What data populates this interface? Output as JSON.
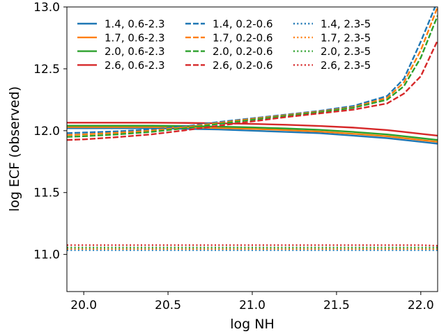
{
  "chart_data": {
    "type": "line",
    "xlabel": "log NH",
    "ylabel": "log ECF (observed)",
    "xlim": [
      19.9,
      22.1
    ],
    "ylim": [
      10.7,
      13.0
    ],
    "xticks": [
      20.0,
      20.5,
      21.0,
      21.5,
      22.0
    ],
    "yticks": [
      11.0,
      11.5,
      12.0,
      12.5,
      13.0
    ],
    "x": [
      19.9,
      20.0,
      20.2,
      20.4,
      20.6,
      20.8,
      21.0,
      21.2,
      21.4,
      21.6,
      21.8,
      21.9,
      22.0,
      22.1
    ],
    "legend_position": "top-left",
    "legend_columns": 3,
    "colors": {
      "1.4": "#1f77b4",
      "1.7": "#ff7f0e",
      "2.0": "#2ca02c",
      "2.6": "#d62728"
    },
    "series": [
      {
        "name": "1.4, 0.6-2.3",
        "color": "#1f77b4",
        "style": "solid",
        "values": [
          12.02,
          12.02,
          12.02,
          12.02,
          12.015,
          12.01,
          12.0,
          11.99,
          11.98,
          11.96,
          11.94,
          11.925,
          11.91,
          11.895
        ]
      },
      {
        "name": "1.7, 0.6-2.3",
        "color": "#ff7f0e",
        "style": "solid",
        "values": [
          12.03,
          12.03,
          12.03,
          12.03,
          12.028,
          12.022,
          12.015,
          12.005,
          11.993,
          11.975,
          11.955,
          11.94,
          11.925,
          11.91
        ]
      },
      {
        "name": "2.0, 0.6-2.3",
        "color": "#2ca02c",
        "style": "solid",
        "values": [
          12.04,
          12.04,
          12.04,
          12.04,
          12.038,
          12.033,
          12.027,
          12.018,
          12.007,
          11.99,
          11.97,
          11.955,
          11.94,
          11.925
        ]
      },
      {
        "name": "2.6, 0.6-2.3",
        "color": "#d62728",
        "style": "solid",
        "values": [
          12.065,
          12.065,
          12.065,
          12.065,
          12.063,
          12.06,
          12.055,
          12.048,
          12.038,
          12.025,
          12.005,
          11.99,
          11.975,
          11.96
        ]
      },
      {
        "name": "1.4, 0.2-0.6",
        "color": "#1f77b4",
        "style": "dashed",
        "values": [
          11.98,
          11.985,
          11.995,
          12.01,
          12.035,
          12.07,
          12.1,
          12.13,
          12.16,
          12.2,
          12.28,
          12.42,
          12.72,
          13.05
        ]
      },
      {
        "name": "1.7, 0.2-0.6",
        "color": "#ff7f0e",
        "style": "dashed",
        "values": [
          11.965,
          11.97,
          11.983,
          12.0,
          12.028,
          12.063,
          12.095,
          12.125,
          12.155,
          12.19,
          12.265,
          12.39,
          12.65,
          13.0
        ]
      },
      {
        "name": "2.0, 0.2-0.6",
        "color": "#2ca02c",
        "style": "dashed",
        "values": [
          11.95,
          11.955,
          11.97,
          11.99,
          12.02,
          12.055,
          12.088,
          12.12,
          12.15,
          12.185,
          12.25,
          12.36,
          12.59,
          12.93
        ]
      },
      {
        "name": "2.6, 0.2-0.6",
        "color": "#d62728",
        "style": "dashed",
        "values": [
          11.925,
          11.93,
          11.948,
          11.97,
          12.003,
          12.04,
          12.075,
          12.11,
          12.14,
          12.17,
          12.22,
          12.3,
          12.44,
          12.73
        ]
      },
      {
        "name": "1.4, 2.3-5",
        "color": "#1f77b4",
        "style": "dotted",
        "values": [
          11.035,
          11.035,
          11.035,
          11.035,
          11.035,
          11.035,
          11.035,
          11.035,
          11.035,
          11.035,
          11.035,
          11.035,
          11.035,
          11.035
        ]
      },
      {
        "name": "1.7, 2.3-5",
        "color": "#ff7f0e",
        "style": "dotted",
        "values": [
          11.045,
          11.045,
          11.045,
          11.045,
          11.045,
          11.045,
          11.045,
          11.045,
          11.045,
          11.045,
          11.045,
          11.045,
          11.045,
          11.045
        ]
      },
      {
        "name": "2.0, 2.3-5",
        "color": "#2ca02c",
        "style": "dotted",
        "values": [
          11.055,
          11.055,
          11.055,
          11.055,
          11.055,
          11.055,
          11.055,
          11.055,
          11.055,
          11.055,
          11.055,
          11.055,
          11.055,
          11.055
        ]
      },
      {
        "name": "2.6, 2.3-5",
        "color": "#d62728",
        "style": "dotted",
        "values": [
          11.075,
          11.075,
          11.075,
          11.075,
          11.075,
          11.075,
          11.075,
          11.075,
          11.075,
          11.075,
          11.075,
          11.075,
          11.075,
          11.07
        ]
      }
    ]
  }
}
